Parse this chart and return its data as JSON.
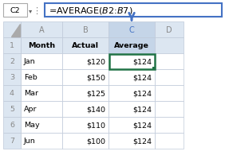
{
  "formula_bar_cell": "C2",
  "formula_bar_formula": "=AVERAGE($B$2:$B$7)",
  "col_headers": [
    "A",
    "B",
    "C",
    "D"
  ],
  "header_row": [
    "Month",
    "Actual",
    "Average",
    ""
  ],
  "rows": [
    [
      "Jan",
      "$120",
      "$124",
      ""
    ],
    [
      "Feb",
      "$150",
      "$124",
      ""
    ],
    [
      "Mar",
      "$125",
      "$124",
      ""
    ],
    [
      "Apr",
      "$140",
      "$124",
      ""
    ],
    [
      "May",
      "$110",
      "$124",
      ""
    ],
    [
      "Jun",
      "$100",
      "$124",
      ""
    ]
  ],
  "bg_white": "#ffffff",
  "bg_row_header": "#dce6f1",
  "bg_col_c_letter": "#c5d5e8",
  "bg_header_row": "#dce6f1",
  "bg_header_c": "#c5d5e8",
  "border_selected": "#217346",
  "text_dark": "#000000",
  "text_gray": "#888888",
  "text_blue_c": "#4472c4",
  "formula_bar_border": "#4472c4",
  "arrow_color": "#4472c4",
  "grid_color": "#bfc9d9",
  "namebox_border": "#aaaaaa",
  "font_size_cell": 6.8,
  "font_size_formula": 8.0,
  "font_size_col_letter": 7.0
}
